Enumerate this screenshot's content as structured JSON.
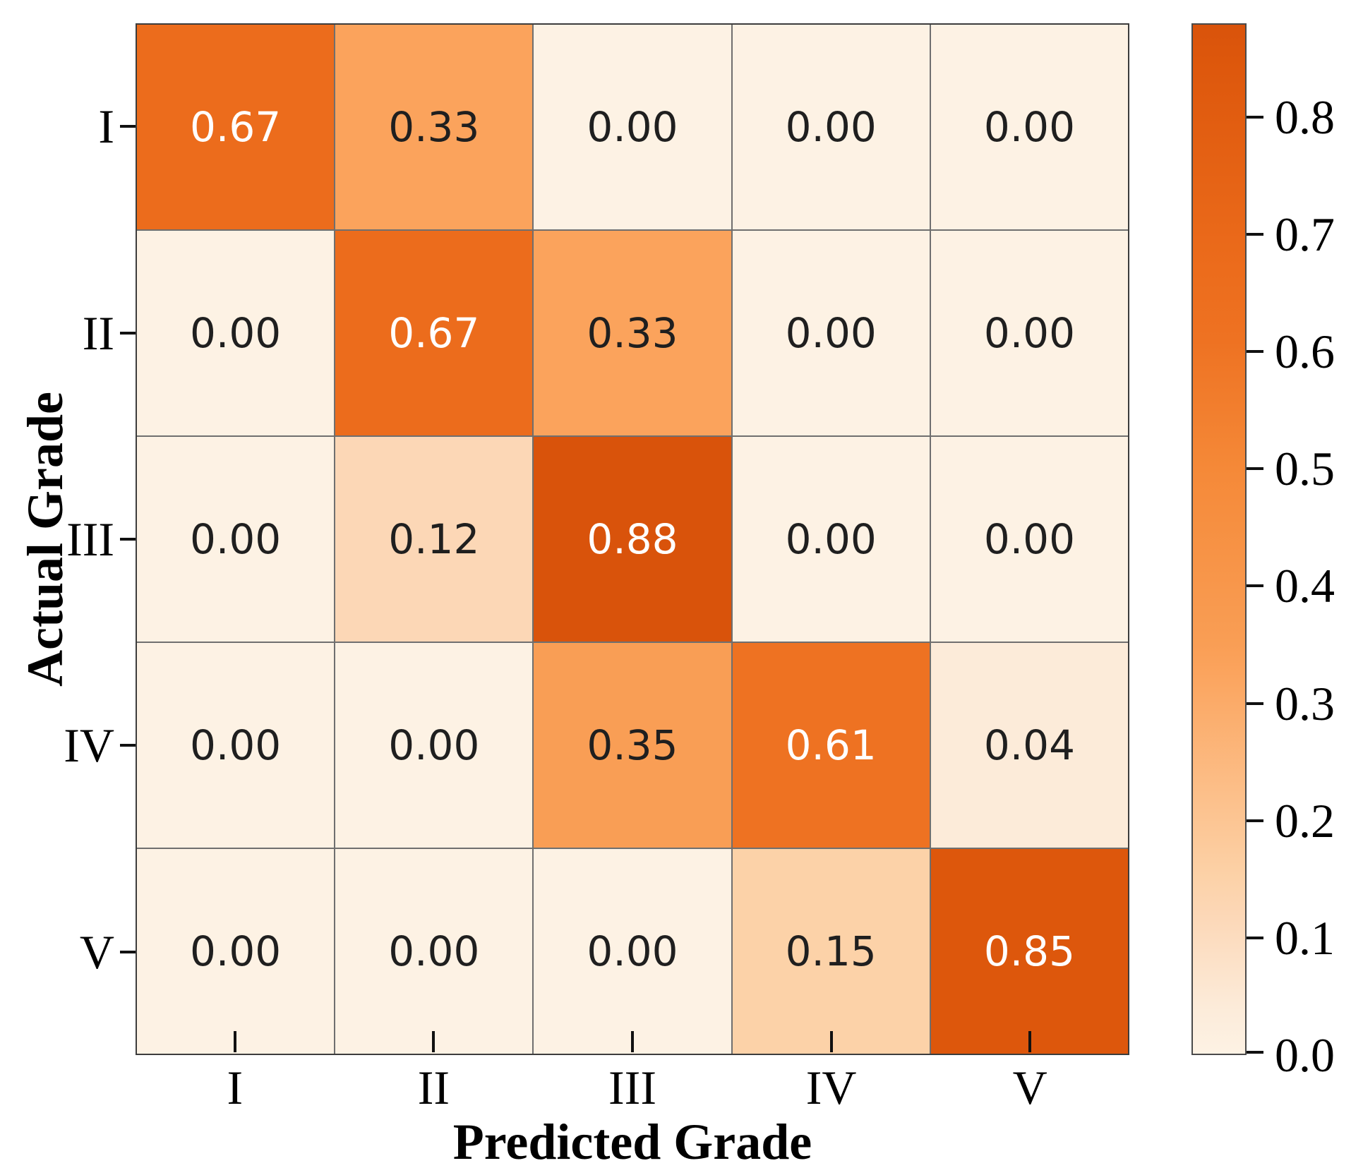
{
  "figure": {
    "background": "#ffffff",
    "tick_color": "#111111",
    "spine_color": "#3c3c3c"
  },
  "chart_data": {
    "type": "heatmap",
    "title": "",
    "xlabel": "Predicted Grade",
    "ylabel": "Actual Grade",
    "x_categories": [
      "I",
      "II",
      "III",
      "IV",
      "V"
    ],
    "y_categories": [
      "I",
      "II",
      "III",
      "IV",
      "V"
    ],
    "matrix": [
      [
        0.67,
        0.33,
        0.0,
        0.0,
        0.0
      ],
      [
        0.0,
        0.67,
        0.33,
        0.0,
        0.0
      ],
      [
        0.0,
        0.12,
        0.88,
        0.0,
        0.0
      ],
      [
        0.0,
        0.0,
        0.35,
        0.61,
        0.04
      ],
      [
        0.0,
        0.0,
        0.0,
        0.15,
        0.85
      ]
    ],
    "cell_labels": [
      [
        "0.67",
        "0.33",
        "0.00",
        "0.00",
        "0.00"
      ],
      [
        "0.00",
        "0.67",
        "0.33",
        "0.00",
        "0.00"
      ],
      [
        "0.00",
        "0.12",
        "0.88",
        "0.00",
        "0.00"
      ],
      [
        "0.00",
        "0.00",
        "0.35",
        "0.61",
        "0.04"
      ],
      [
        "0.00",
        "0.00",
        "0.00",
        "0.15",
        "0.85"
      ]
    ],
    "grid_on": true,
    "grid_line_color": "#6f6f6f",
    "annotation_colors": {
      "dark": "#1f1f1f",
      "light": "#ffffff"
    },
    "annotation_light_threshold": 0.6,
    "colormap_name": "Oranges",
    "gradient_stops": [
      {
        "value": 0.0,
        "color": "#fdf2e4"
      },
      {
        "value": 0.04,
        "color": "#fcebd9"
      },
      {
        "value": 0.12,
        "color": "#fcd7b6"
      },
      {
        "value": 0.15,
        "color": "#fcd2a8"
      },
      {
        "value": 0.33,
        "color": "#fba35c"
      },
      {
        "value": 0.35,
        "color": "#f99e55"
      },
      {
        "value": 0.5,
        "color": "#f58938"
      },
      {
        "value": 0.61,
        "color": "#ee7222"
      },
      {
        "value": 0.67,
        "color": "#ec6c1c"
      },
      {
        "value": 0.85,
        "color": "#dd570c"
      },
      {
        "value": 0.88,
        "color": "#d9530b"
      }
    ],
    "colorbar": {
      "min": 0.0,
      "max": 0.88,
      "legend_position": "right",
      "tick_values": [
        0.0,
        0.1,
        0.2,
        0.3,
        0.4,
        0.5,
        0.6,
        0.7,
        0.8
      ],
      "tick_labels": [
        "0.0",
        "0.1",
        "0.2",
        "0.3",
        "0.4",
        "0.5",
        "0.6",
        "0.7",
        "0.8"
      ]
    }
  }
}
